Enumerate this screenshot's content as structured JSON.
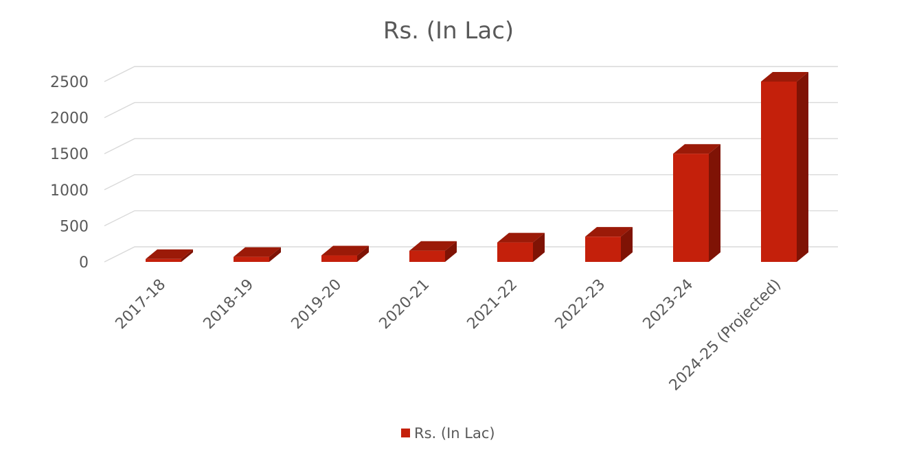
{
  "chart_data": {
    "type": "bar",
    "title": "Rs. (In Lac)",
    "xlabel": "",
    "ylabel": "",
    "categories": [
      "2017-18",
      "2018-19",
      "2019-20",
      "2020-21",
      "2021-22",
      "2022-23",
      "2023-24",
      "2024-25 (Projected)"
    ],
    "series": [
      {
        "name": "Rs. (In Lac)",
        "values": [
          40,
          70,
          90,
          155,
          270,
          350,
          1500,
          2500
        ]
      }
    ],
    "ylim": [
      0,
      2500
    ],
    "yticks": [
      0,
      500,
      1000,
      1500,
      2000,
      2500
    ],
    "grid": true,
    "legend": "bottom",
    "style": "3d-column",
    "colors": {
      "front": "#c4200b",
      "side": "#7f1305",
      "top": "#9b1a08",
      "grid": "#d9d9d9",
      "text": "#595959"
    }
  }
}
